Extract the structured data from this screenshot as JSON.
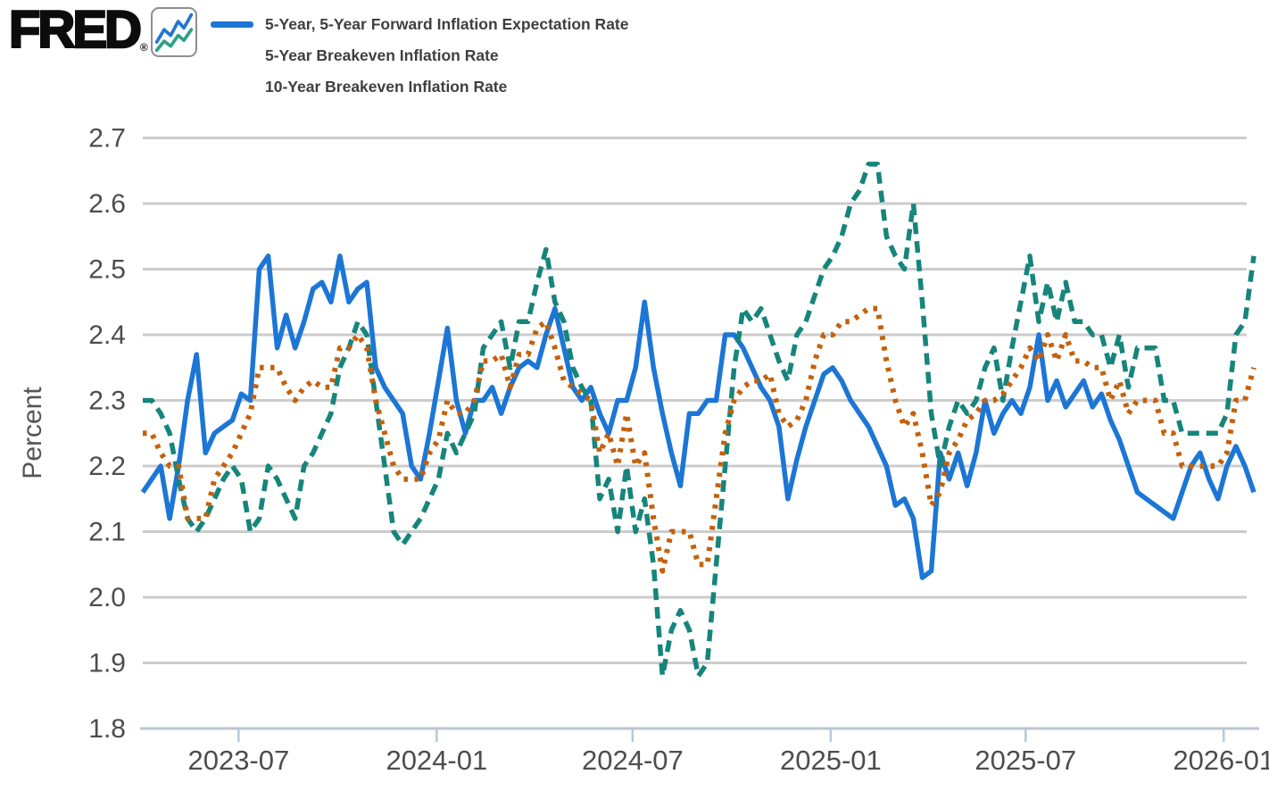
{
  "header": {
    "logo_text": "FRED",
    "logo_reg": "®",
    "logo_icon": "fred-line-chart-icon"
  },
  "colors": {
    "grid": "#cccccc",
    "axis_line": "#b9c7d7",
    "tick_label": "#4d4d4d",
    "axis_title": "#555555",
    "legend_text": "#3f3f3f",
    "logo_icon_blue": "#2176d2",
    "logo_icon_green": "#2ba188"
  },
  "chart_data": {
    "type": "line",
    "title": "",
    "ylabel": "Percent",
    "xlabel": "",
    "ylim": [
      1.8,
      2.7
    ],
    "grid": "horizontal",
    "legend_position": "top-left",
    "yticks": [
      "2.7",
      "2.6",
      "2.5",
      "2.4",
      "2.3",
      "2.2",
      "2.1",
      "2.0",
      "1.9",
      "1.8"
    ],
    "x_range": [
      "2023-04-03",
      "2026-01-29"
    ],
    "x_ticks": [
      "2023-07",
      "2024-01",
      "2024-07",
      "2025-01",
      "2025-07",
      "2026-01"
    ],
    "series": [
      {
        "name": "5-Year, 5-Year Forward Inflation Expectation Rate",
        "color": "#1c76d5",
        "style": "solid",
        "values": [
          2.16,
          2.18,
          2.2,
          2.12,
          2.2,
          2.3,
          2.37,
          2.22,
          2.25,
          2.26,
          2.27,
          2.31,
          2.3,
          2.5,
          2.52,
          2.38,
          2.43,
          2.38,
          2.42,
          2.47,
          2.48,
          2.45,
          2.52,
          2.45,
          2.47,
          2.48,
          2.35,
          2.32,
          2.3,
          2.28,
          2.2,
          2.18,
          2.25,
          2.33,
          2.41,
          2.3,
          2.25,
          2.3,
          2.3,
          2.32,
          2.28,
          2.32,
          2.35,
          2.36,
          2.35,
          2.4,
          2.44,
          2.38,
          2.32,
          2.3,
          2.32,
          2.28,
          2.25,
          2.3,
          2.3,
          2.35,
          2.45,
          2.35,
          2.28,
          2.22,
          2.17,
          2.28,
          2.28,
          2.3,
          2.3,
          2.4,
          2.4,
          2.38,
          2.35,
          2.32,
          2.3,
          2.26,
          2.15,
          2.21,
          2.26,
          2.3,
          2.34,
          2.35,
          2.33,
          2.3,
          2.28,
          2.26,
          2.23,
          2.2,
          2.14,
          2.15,
          2.12,
          2.03,
          2.04,
          2.22,
          2.18,
          2.22,
          2.17,
          2.22,
          2.3,
          2.25,
          2.28,
          2.3,
          2.28,
          2.32,
          2.4,
          2.3,
          2.33,
          2.29,
          2.31,
          2.33,
          2.29,
          2.31,
          2.27,
          2.24,
          2.2,
          2.16,
          2.15,
          2.14,
          2.13,
          2.12,
          2.16,
          2.2,
          2.22,
          2.18,
          2.15,
          2.2,
          2.23,
          2.2,
          2.16
        ]
      },
      {
        "name": "5-Year Breakeven Inflation Rate",
        "color": "#16857b",
        "style": "dashed",
        "values": [
          2.3,
          2.3,
          2.28,
          2.25,
          2.18,
          2.12,
          2.1,
          2.12,
          2.15,
          2.18,
          2.2,
          2.18,
          2.1,
          2.12,
          2.2,
          2.18,
          2.15,
          2.12,
          2.2,
          2.22,
          2.25,
          2.28,
          2.35,
          2.38,
          2.42,
          2.4,
          2.3,
          2.2,
          2.1,
          2.08,
          2.1,
          2.12,
          2.15,
          2.18,
          2.25,
          2.22,
          2.25,
          2.28,
          2.38,
          2.4,
          2.42,
          2.35,
          2.42,
          2.42,
          2.48,
          2.53,
          2.45,
          2.42,
          2.35,
          2.32,
          2.3,
          2.15,
          2.18,
          2.1,
          2.2,
          2.1,
          2.15,
          2.05,
          1.88,
          1.95,
          1.98,
          1.95,
          1.88,
          1.9,
          2.05,
          2.2,
          2.35,
          2.44,
          2.42,
          2.44,
          2.4,
          2.36,
          2.33,
          2.4,
          2.42,
          2.46,
          2.5,
          2.52,
          2.55,
          2.6,
          2.62,
          2.66,
          2.66,
          2.55,
          2.52,
          2.5,
          2.6,
          2.45,
          2.28,
          2.2,
          2.26,
          2.3,
          2.28,
          2.3,
          2.35,
          2.38,
          2.3,
          2.38,
          2.45,
          2.52,
          2.42,
          2.48,
          2.42,
          2.48,
          2.42,
          2.42,
          2.4,
          2.4,
          2.35,
          2.4,
          2.32,
          2.38,
          2.38,
          2.38,
          2.3,
          2.3,
          2.25,
          2.25,
          2.25,
          2.25,
          2.25,
          2.28,
          2.4,
          2.42,
          2.52
        ]
      },
      {
        "name": "10-Year Breakeven Inflation Rate",
        "color": "#c4610c",
        "style": "dotted",
        "values": [
          2.25,
          2.25,
          2.22,
          2.2,
          2.2,
          2.12,
          2.12,
          2.12,
          2.18,
          2.2,
          2.22,
          2.25,
          2.28,
          2.35,
          2.35,
          2.35,
          2.32,
          2.3,
          2.32,
          2.33,
          2.32,
          2.32,
          2.38,
          2.38,
          2.4,
          2.38,
          2.3,
          2.25,
          2.2,
          2.18,
          2.18,
          2.18,
          2.22,
          2.24,
          2.3,
          2.28,
          2.28,
          2.3,
          2.36,
          2.36,
          2.37,
          2.32,
          2.37,
          2.37,
          2.41,
          2.42,
          2.38,
          2.33,
          2.32,
          2.31,
          2.3,
          2.22,
          2.25,
          2.2,
          2.28,
          2.2,
          2.22,
          2.12,
          2.04,
          2.1,
          2.1,
          2.1,
          2.05,
          2.05,
          2.15,
          2.25,
          2.3,
          2.32,
          2.33,
          2.33,
          2.34,
          2.28,
          2.26,
          2.27,
          2.3,
          2.36,
          2.4,
          2.4,
          2.42,
          2.42,
          2.43,
          2.44,
          2.44,
          2.36,
          2.3,
          2.26,
          2.28,
          2.22,
          2.14,
          2.16,
          2.22,
          2.24,
          2.27,
          2.28,
          2.3,
          2.3,
          2.31,
          2.33,
          2.35,
          2.38,
          2.36,
          2.4,
          2.36,
          2.4,
          2.36,
          2.36,
          2.35,
          2.35,
          2.3,
          2.33,
          2.28,
          2.3,
          2.3,
          2.3,
          2.25,
          2.25,
          2.2,
          2.2,
          2.2,
          2.2,
          2.2,
          2.22,
          2.3,
          2.3,
          2.35
        ]
      }
    ]
  }
}
